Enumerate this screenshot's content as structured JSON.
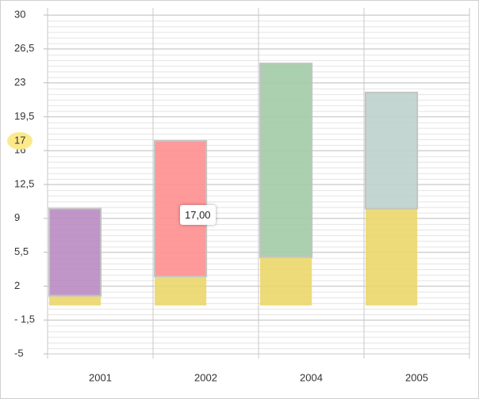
{
  "chart_data": {
    "type": "stacked_bar",
    "categories": [
      "2001",
      "2002",
      "2004",
      "2005"
    ],
    "series": [
      {
        "color": "#ebd76a",
        "values": [
          1,
          3,
          5,
          10
        ]
      },
      {
        "colors": [
          "#b98bc3",
          "#ff8f8f",
          "#a2cba7",
          "#bcd1cd"
        ],
        "values": [
          9,
          14,
          20,
          12
        ]
      }
    ],
    "ylim": [
      -5,
      30
    ],
    "yticks": [
      -5,
      {
        "value": -1.5,
        "label": "- 1,5"
      },
      2,
      {
        "value": 5.5,
        "label": "5,5"
      },
      9,
      {
        "value": 12.5,
        "label": "12,5"
      },
      16,
      {
        "value": 19.5,
        "label": "19,5"
      },
      23,
      {
        "value": 26.5,
        "label": "26,5"
      },
      30
    ],
    "grid": true,
    "crosshair": {
      "value": 17,
      "label": "17"
    },
    "tooltip": {
      "value": 17,
      "label": "17,00"
    }
  }
}
